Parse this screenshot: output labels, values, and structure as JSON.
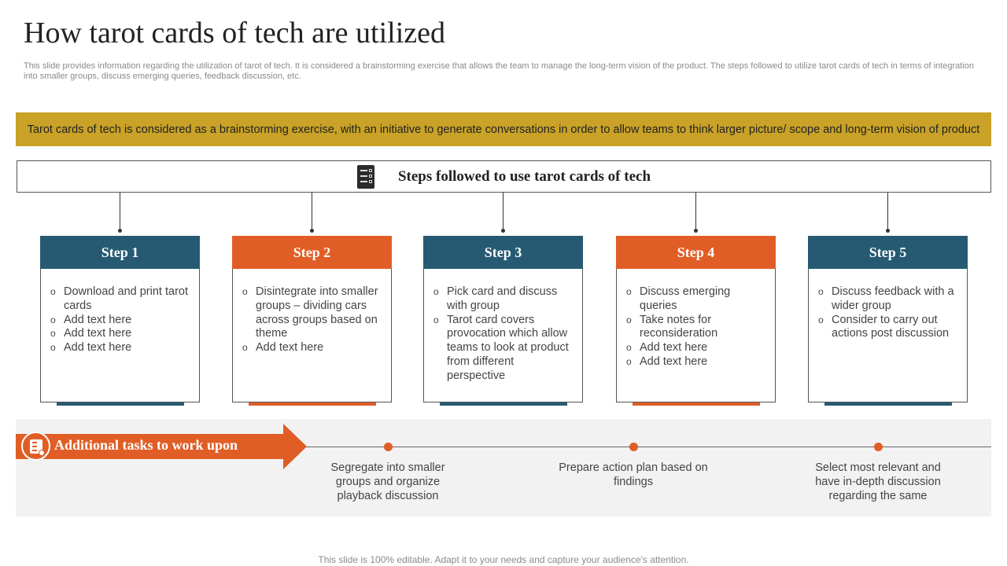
{
  "title": "How tarot cards of tech are utilized",
  "subtitle": "This slide provides information regarding the utilization of tarot of tech. It is considered a brainstorming exercise that allows the team to manage the long-term vision of the product. The steps followed to utilize tarot cards of tech in terms of integration into smaller groups, discuss emerging queries, feedback discussion, etc.",
  "banner": "Tarot cards of tech is considered as a brainstorming exercise, with an initiative to generate conversations in order to allow teams to think larger picture/ scope and long-term vision of product",
  "steps_header": "Steps followed to use tarot cards of tech",
  "steps": [
    {
      "label": "Step 1",
      "color": "#265a73",
      "items": [
        "Download and print tarot cards",
        "Add text here",
        "Add text here",
        "Add text here"
      ]
    },
    {
      "label": "Step 2",
      "color": "#e05e26",
      "items": [
        "Disintegrate into smaller groups – dividing cars across groups based on theme",
        "Add text here"
      ]
    },
    {
      "label": "Step 3",
      "color": "#265a73",
      "items": [
        "Pick card and discuss with group",
        "Tarot card covers provocation which allow teams to look at product from different perspective"
      ]
    },
    {
      "label": "Step 4",
      "color": "#e05e26",
      "items": [
        "Discuss emerging queries",
        "Take notes for reconsideration",
        "Add text here",
        "Add text here"
      ]
    },
    {
      "label": "Step 5",
      "color": "#265a73",
      "items": [
        "Discuss feedback with a wider group",
        "Consider to carry out actions post discussion"
      ]
    }
  ],
  "additional": {
    "label": "Additional tasks to work upon",
    "tasks": [
      "Segregate into smaller groups and organize playback discussion",
      "Prepare action plan based on findings",
      "Select most relevant and have in-depth discussion regarding the same"
    ]
  },
  "footer": "This slide is 100% editable. Adapt it to your needs and capture your audience's attention.",
  "colors": {
    "accent_gold": "#c9a227",
    "blue": "#265a73",
    "orange": "#e05e26"
  }
}
